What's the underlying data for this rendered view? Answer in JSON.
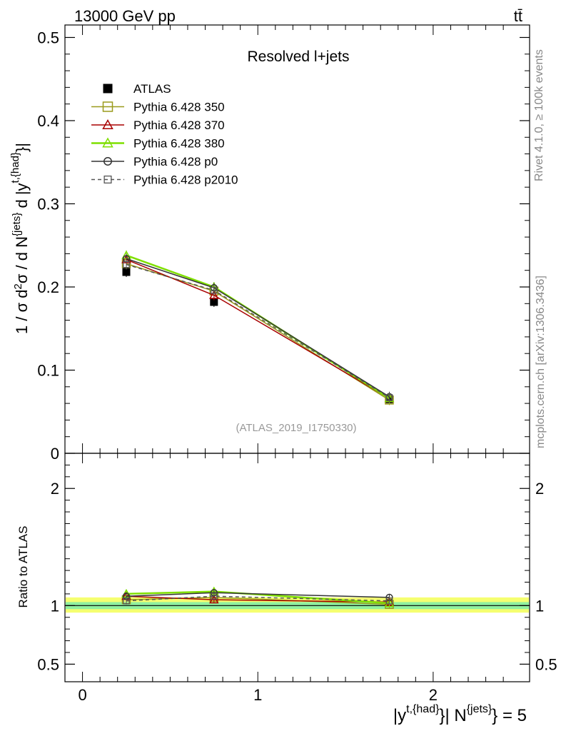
{
  "header": {
    "energy_label": "13000 GeV pp",
    "process_label": "tt̄"
  },
  "side_text": {
    "rivet": "Rivet 4.1.0, ≥ 100k events",
    "mcplots": "mcplots.cern.ch [arXiv:1306.3436]"
  },
  "chart_data": [
    {
      "type": "line",
      "title": "Resolved l+jets",
      "analysis_label": "(ATLAS_2019_I1750330)",
      "ylabel": "1 / σ d²σ / d N^{jets} d |y^{t,{had}}|",
      "xlim": [
        -0.1,
        2.55
      ],
      "ylim": [
        0,
        0.515
      ],
      "yticks": [
        0,
        0.1,
        0.2,
        0.3,
        0.4,
        0.5
      ],
      "ytick_labels": [
        "0",
        "0.1",
        "0.2",
        "0.3",
        "0.4",
        "0.5"
      ],
      "legend_position": "top-left",
      "series": [
        {
          "name": "ATLAS",
          "color": "#000000",
          "marker": "filled-square",
          "style": "points",
          "x": [
            0.25,
            0.75,
            1.75
          ],
          "values": [
            0.218,
            0.182,
            0.065
          ]
        },
        {
          "name": "Pythia 6.428 350",
          "color": "#9a9a1c",
          "marker": "open-square",
          "style": "solid",
          "x": [
            0.25,
            0.75,
            1.75
          ],
          "values": [
            0.228,
            0.195,
            0.064
          ]
        },
        {
          "name": "Pythia 6.428 370",
          "color": "#a80000",
          "marker": "open-triangle",
          "style": "solid",
          "x": [
            0.25,
            0.75,
            1.75
          ],
          "values": [
            0.233,
            0.19,
            0.066
          ]
        },
        {
          "name": "Pythia 6.428 380",
          "color": "#7fdf00",
          "marker": "open-triangle",
          "style": "solid",
          "x": [
            0.25,
            0.75,
            1.75
          ],
          "values": [
            0.238,
            0.2,
            0.066
          ]
        },
        {
          "name": "Pythia 6.428 p0",
          "color": "#333333",
          "marker": "open-circle",
          "style": "solid",
          "x": [
            0.25,
            0.75,
            1.75
          ],
          "values": [
            0.234,
            0.199,
            0.068
          ]
        },
        {
          "name": "Pythia 6.428 p2010",
          "color": "#555555",
          "marker": "open-square-small",
          "style": "dashed",
          "x": [
            0.25,
            0.75,
            1.75
          ],
          "values": [
            0.227,
            0.196,
            0.067
          ]
        }
      ]
    },
    {
      "type": "line",
      "ylabel": "Ratio to ATLAS",
      "xlabel": "|y^{t,{had}}| N^{jets} = 5",
      "xlim": [
        -0.1,
        2.55
      ],
      "ylim": [
        0.35,
        2.3
      ],
      "xticks": [
        0,
        1,
        2
      ],
      "xtick_labels": [
        "0",
        "1",
        "2"
      ],
      "yticks": [
        0.5,
        1,
        2
      ],
      "ytick_labels": [
        "0.5",
        "1",
        "2"
      ],
      "bands": [
        {
          "color": "#f5ff70",
          "low": 0.94,
          "high": 1.07
        },
        {
          "color": "#8ff0a0",
          "low": 0.97,
          "high": 1.03
        }
      ],
      "series": [
        {
          "name": "Pythia 6.428 350",
          "color": "#9a9a1c",
          "marker": "open-square",
          "style": "solid",
          "x": [
            0.25,
            0.75,
            1.75
          ],
          "values": [
            1.05,
            1.07,
            1.01
          ]
        },
        {
          "name": "Pythia 6.428 370",
          "color": "#a80000",
          "marker": "open-triangle",
          "style": "solid",
          "x": [
            0.25,
            0.75,
            1.75
          ],
          "values": [
            1.08,
            1.05,
            1.03
          ]
        },
        {
          "name": "Pythia 6.428 380",
          "color": "#7fdf00",
          "marker": "open-triangle",
          "style": "solid",
          "x": [
            0.25,
            0.75,
            1.75
          ],
          "values": [
            1.1,
            1.12,
            1.02
          ]
        },
        {
          "name": "Pythia 6.428 p0",
          "color": "#333333",
          "marker": "open-circle",
          "style": "solid",
          "x": [
            0.25,
            0.75,
            1.75
          ],
          "values": [
            1.08,
            1.11,
            1.07
          ]
        },
        {
          "name": "Pythia 6.428 p2010",
          "color": "#555555",
          "marker": "open-square-small",
          "style": "dashed",
          "x": [
            0.25,
            0.75,
            1.75
          ],
          "values": [
            1.04,
            1.08,
            1.04
          ]
        }
      ]
    }
  ]
}
